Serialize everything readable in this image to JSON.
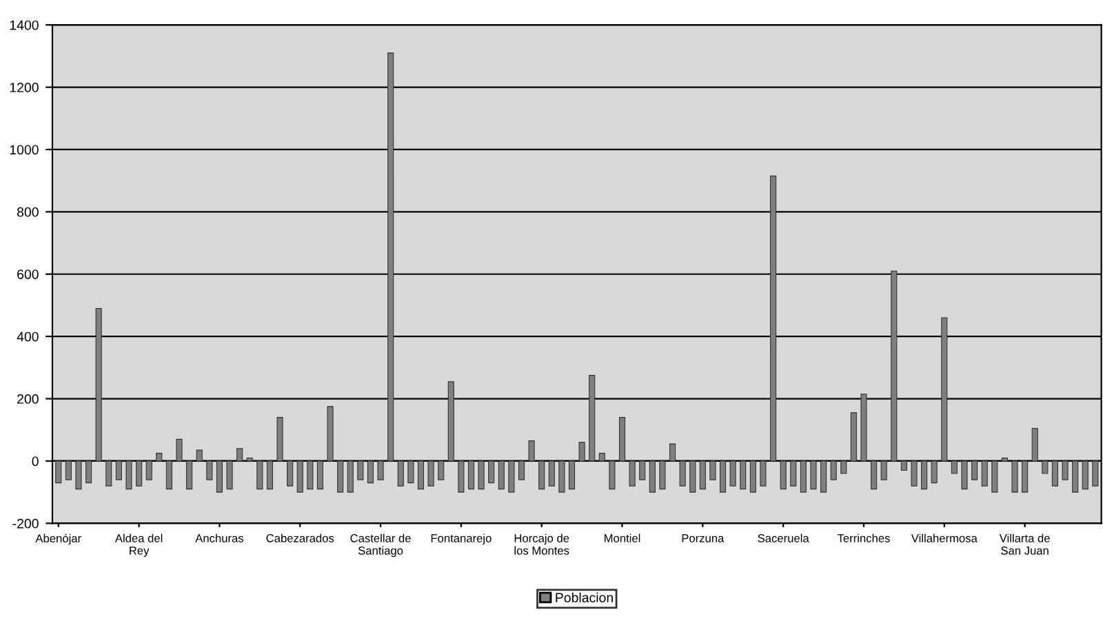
{
  "chart_data": {
    "type": "bar",
    "categories": [
      "Abenójar",
      null,
      null,
      null,
      null,
      null,
      null,
      null,
      "Aldea del Rey",
      null,
      null,
      null,
      null,
      null,
      null,
      null,
      "Anchuras",
      null,
      null,
      null,
      null,
      null,
      null,
      null,
      "Cabezarados",
      null,
      null,
      null,
      null,
      null,
      null,
      null,
      "Castellar de Santiago",
      null,
      null,
      null,
      null,
      null,
      null,
      null,
      "Fontanarejo",
      null,
      null,
      null,
      null,
      null,
      null,
      null,
      "Horcajo de los Montes",
      null,
      null,
      null,
      null,
      null,
      null,
      null,
      "Montiel",
      null,
      null,
      null,
      null,
      null,
      null,
      null,
      "Porzuna",
      null,
      null,
      null,
      null,
      null,
      null,
      null,
      "Saceruela",
      null,
      null,
      null,
      null,
      null,
      null,
      null,
      "Terrinches",
      null,
      null,
      null,
      null,
      null,
      null,
      null,
      "Villahermosa",
      null,
      null,
      null,
      null,
      null,
      null,
      null,
      "Villarta de San Juan",
      null,
      null,
      null,
      null,
      null,
      null,
      null
    ],
    "series": [
      {
        "name": "Poblacion",
        "color": "#7f7f7f",
        "values": [
          -70,
          -60,
          -90,
          -70,
          490,
          -80,
          -60,
          -90,
          -80,
          -60,
          25,
          -90,
          70,
          -90,
          35,
          -60,
          -100,
          -90,
          40,
          10,
          -90,
          -90,
          140,
          -80,
          -100,
          -90,
          -90,
          175,
          -100,
          -100,
          -60,
          -70,
          -60,
          1310,
          -80,
          -70,
          -90,
          -80,
          -60,
          255,
          -100,
          -90,
          -90,
          -70,
          -90,
          -100,
          -60,
          65,
          -90,
          -80,
          -100,
          -90,
          60,
          275,
          25,
          -90,
          140,
          -80,
          -60,
          -100,
          -90,
          55,
          -80,
          -100,
          -90,
          -60,
          -100,
          -80,
          -90,
          -100,
          -80,
          915,
          -90,
          -80,
          -100,
          -90,
          -100,
          -60,
          -40,
          155,
          215,
          -90,
          -60,
          610,
          -30,
          -80,
          -90,
          -70,
          460,
          -40,
          -90,
          -60,
          -80,
          -100,
          10,
          -100,
          -100,
          105,
          -40,
          -80,
          -60,
          -100,
          -90,
          -80
        ]
      }
    ],
    "ylim": [
      -200,
      1400
    ],
    "yticks": [
      -200,
      0,
      200,
      400,
      600,
      800,
      1000,
      1200,
      1400
    ],
    "grid": "y",
    "legend": "bottom"
  }
}
